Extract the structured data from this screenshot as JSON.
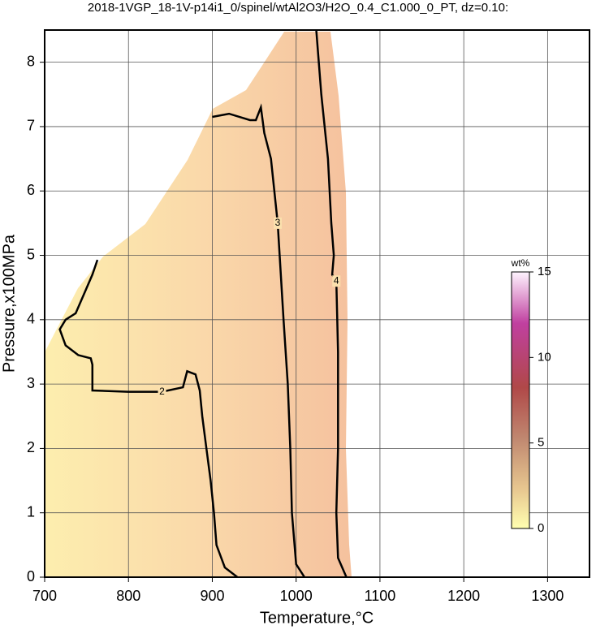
{
  "chart_data": {
    "type": "contour",
    "title": "2018-1VGP_18-1V-p14i1_0/spinel/wtAl2O3/H2O_0.4_C1.000_0_PT, dz=0.10:",
    "x_label": "Temperature,°C",
    "y_label": "Pressure,x100MPa",
    "xlim": [
      700,
      1350
    ],
    "ylim": [
      0,
      8.5
    ],
    "xticks": [
      700,
      800,
      900,
      1000,
      1100,
      1200,
      1300
    ],
    "yticks": [
      0,
      1,
      2,
      3,
      4,
      5,
      6,
      7,
      8
    ],
    "grid": true,
    "contours": [
      {
        "name": "2",
        "color": "#000000",
        "x": [
          763,
          757,
          747,
          737,
          725,
          718,
          725,
          740,
          755,
          757,
          757,
          800,
          840,
          865,
          870,
          880,
          885,
          888,
          893,
          898,
          902,
          905,
          915,
          930
        ],
        "y": [
          4.93,
          4.7,
          4.4,
          4.1,
          4.0,
          3.85,
          3.6,
          3.45,
          3.4,
          3.3,
          2.9,
          2.88,
          2.88,
          2.95,
          3.2,
          3.15,
          2.9,
          2.5,
          2.0,
          1.5,
          1.0,
          0.5,
          0.15,
          0
        ]
      },
      {
        "name": "3",
        "color": "#000000",
        "x": [
          900,
          920,
          945,
          952,
          958,
          962,
          970,
          978,
          985,
          990,
          993,
          995,
          1000,
          1010
        ],
        "y": [
          7.15,
          7.2,
          7.1,
          7.1,
          7.3,
          6.9,
          6.5,
          5.5,
          4.0,
          3.0,
          2.0,
          1.0,
          0.2,
          0
        ]
      },
      {
        "name": "4",
        "color": "#000000",
        "x": [
          1024,
          1030,
          1038,
          1042,
          1045,
          1043,
          1048,
          1050,
          1050,
          1048,
          1050,
          1060
        ],
        "y": [
          8.5,
          7.5,
          6.5,
          5.5,
          5.0,
          4.7,
          4.6,
          3.5,
          2.0,
          1.0,
          0.3,
          0
        ]
      }
    ],
    "colorbar": {
      "label": "wt%",
      "lim": [
        0,
        15
      ],
      "ticks": [
        0,
        5,
        10,
        15
      ]
    }
  }
}
